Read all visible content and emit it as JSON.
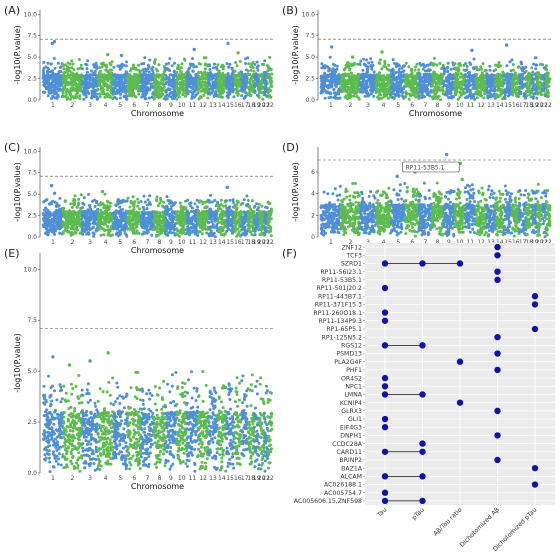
{
  "colors": {
    "odd_chr": "#4f8fd6",
    "even_chr": "#5dbb4f",
    "threshold": "#555555",
    "dot": "#1212a8",
    "grid": "#e3e3e3",
    "panel_bg": "#ebebeb"
  },
  "chart_data": [
    {
      "panel": "(A)",
      "type": "scatter",
      "xlabel": "Chromosome",
      "ylabel": "-log10(P.value)",
      "ylim": [
        0,
        10.5
      ],
      "yticks": [
        "0.0",
        "2.5",
        "5.0",
        "7.5",
        "10.0"
      ],
      "threshold": 7.1,
      "categories": [
        "1",
        "2",
        "3",
        "4",
        "5",
        "6",
        "7",
        "8",
        "9",
        "10",
        "11",
        "12",
        "13",
        "14",
        "15",
        "16",
        "17",
        "18",
        "19",
        "20",
        "21",
        "22"
      ],
      "top_points": [
        {
          "chr": "1",
          "y": 6.8
        },
        {
          "chr": "1",
          "y": 6.6
        },
        {
          "chr": "4",
          "y": 5.3
        },
        {
          "chr": "5",
          "y": 5.2
        },
        {
          "chr": "11",
          "y": 5.9
        },
        {
          "chr": "15",
          "y": 6.6
        },
        {
          "chr": "16",
          "y": 5.5
        }
      ]
    },
    {
      "panel": "(B)",
      "type": "scatter",
      "xlabel": "Chromosome",
      "ylabel": "-log10(P.value)",
      "ylim": [
        0,
        10.5
      ],
      "yticks": [
        "0.0",
        "2.5",
        "5.0",
        "7.5",
        "10.0"
      ],
      "threshold": 7.1,
      "categories": [
        "1",
        "2",
        "3",
        "4",
        "5",
        "6",
        "7",
        "8",
        "9",
        "10",
        "11",
        "12",
        "13",
        "14",
        "15",
        "16",
        "17",
        "18",
        "19",
        "20",
        "21",
        "22"
      ],
      "top_points": [
        {
          "chr": "1",
          "y": 6.2
        },
        {
          "chr": "2",
          "y": 5.0
        },
        {
          "chr": "4",
          "y": 5.6
        },
        {
          "chr": "11",
          "y": 5.8
        },
        {
          "chr": "15",
          "y": 6.4
        }
      ]
    },
    {
      "panel": "(C)",
      "type": "scatter",
      "xlabel": "Chromosome",
      "ylabel": "-log10(P.value)",
      "ylim": [
        0,
        10.5
      ],
      "yticks": [
        "0.0",
        "2.5",
        "5.0",
        "7.5",
        "10.0"
      ],
      "threshold": 7.1,
      "categories": [
        "1",
        "2",
        "3",
        "4",
        "5",
        "6",
        "7",
        "8",
        "9",
        "10",
        "11",
        "12",
        "13",
        "14",
        "15",
        "16",
        "17",
        "18",
        "19",
        "20",
        "21",
        "22"
      ],
      "top_points": [
        {
          "chr": "1",
          "y": 6.0
        },
        {
          "chr": "1",
          "y": 5.1
        },
        {
          "chr": "4",
          "y": 5.3
        },
        {
          "chr": "15",
          "y": 5.8
        }
      ]
    },
    {
      "panel": "(D)",
      "type": "scatter",
      "xlabel": "Chromosome",
      "ylabel": "-log10(P.value)",
      "ylim": [
        0,
        8.3
      ],
      "yticks": [
        "0",
        "2",
        "4",
        "6"
      ],
      "threshold": 7.1,
      "categories": [
        "1",
        "2",
        "3",
        "4",
        "5",
        "6",
        "7",
        "8",
        "9",
        "10",
        "11",
        "12",
        "13",
        "14",
        "15",
        "16",
        "17",
        "18",
        "19",
        "20",
        "21",
        "22"
      ],
      "annotation": "RP11-53B5.1",
      "top_points": [
        {
          "chr": "9",
          "y": 7.6
        },
        {
          "chr": "10",
          "y": 6.8
        },
        {
          "chr": "6",
          "y": 6.0
        },
        {
          "chr": "5",
          "y": 5.6
        },
        {
          "chr": "10",
          "y": 5.3
        }
      ]
    },
    {
      "panel": "(E)",
      "type": "scatter",
      "xlabel": "Chromosome",
      "ylabel": "-log10(P.value)",
      "ylim": [
        0,
        10.8
      ],
      "yticks": [
        "0.0",
        "2.5",
        "5.0",
        "7.5",
        "10.0"
      ],
      "threshold": 7.1,
      "categories": [
        "1",
        "2",
        "3",
        "4",
        "5",
        "6",
        "7",
        "8",
        "9",
        "10",
        "11",
        "12",
        "13",
        "14",
        "15",
        "16",
        "17",
        "18",
        "19",
        "20",
        "21",
        "22"
      ],
      "top_points": [
        {
          "chr": "1",
          "y": 5.7
        },
        {
          "chr": "3",
          "y": 5.5
        },
        {
          "chr": "4",
          "y": 5.9
        },
        {
          "chr": "2",
          "y": 5.3
        }
      ]
    },
    {
      "panel": "(F)",
      "type": "dot-matrix",
      "x_categories": [
        "Tau",
        "pTau",
        "Aβ/Tau ratio",
        "Dichotomized Aβ",
        "Dichotomized pTau"
      ],
      "genes": [
        "ZNF12",
        "TCF3",
        "SZRD1",
        "RP11-56I23.1",
        "RP11-53B5.1",
        "RP11-501J20.2",
        "RP11-443B7.1",
        "RP11-371F15.3",
        "RP11-260O18.1",
        "RP11-134P9.3",
        "RP1-65P5.1",
        "RP1-125N5.2",
        "RGS12",
        "PSMD13",
        "PLA2G4F",
        "PHF1",
        "OR4S2",
        "NPC1",
        "LMNA",
        "KCNIP4",
        "GLRX3",
        "GLI1",
        "EIF4G3",
        "DNPH1",
        "CCDC28A",
        "CARD11",
        "BRINP2",
        "BAZ1A",
        "ALCAM",
        "AC026188.1",
        "AC005754.7",
        "AC005606.15,ZNF598"
      ],
      "hits": [
        {
          "gene": "ZNF12",
          "cols": [
            3
          ]
        },
        {
          "gene": "TCF3",
          "cols": [
            3
          ]
        },
        {
          "gene": "SZRD1",
          "cols": [
            0,
            1,
            2
          ]
        },
        {
          "gene": "RP11-56I23.1",
          "cols": [
            3
          ]
        },
        {
          "gene": "RP11-53B5.1",
          "cols": [
            3
          ]
        },
        {
          "gene": "RP11-501J20.2",
          "cols": [
            0
          ]
        },
        {
          "gene": "RP11-443B7.1",
          "cols": [
            4
          ]
        },
        {
          "gene": "RP11-371F15.3",
          "cols": [
            4
          ]
        },
        {
          "gene": "RP11-260O18.1",
          "cols": [
            0
          ]
        },
        {
          "gene": "RP11-134P9.3",
          "cols": [
            0
          ]
        },
        {
          "gene": "RP1-65P5.1",
          "cols": [
            4
          ]
        },
        {
          "gene": "RP1-125N5.2",
          "cols": [
            3
          ]
        },
        {
          "gene": "RGS12",
          "cols": [
            0,
            1
          ]
        },
        {
          "gene": "PSMD13",
          "cols": [
            3
          ]
        },
        {
          "gene": "PLA2G4F",
          "cols": [
            2
          ]
        },
        {
          "gene": "PHF1",
          "cols": [
            3
          ]
        },
        {
          "gene": "OR4S2",
          "cols": [
            0
          ]
        },
        {
          "gene": "NPC1",
          "cols": [
            0
          ]
        },
        {
          "gene": "LMNA",
          "cols": [
            0,
            1
          ]
        },
        {
          "gene": "KCNIP4",
          "cols": [
            2
          ]
        },
        {
          "gene": "GLRX3",
          "cols": [
            3
          ]
        },
        {
          "gene": "GLI1",
          "cols": [
            0
          ]
        },
        {
          "gene": "EIF4G3",
          "cols": [
            0
          ]
        },
        {
          "gene": "DNPH1",
          "cols": [
            3
          ]
        },
        {
          "gene": "CCDC28A",
          "cols": [
            1
          ]
        },
        {
          "gene": "CARD11",
          "cols": [
            0,
            1
          ]
        },
        {
          "gene": "BRINP2",
          "cols": [
            3
          ]
        },
        {
          "gene": "BAZ1A",
          "cols": [
            4
          ]
        },
        {
          "gene": "ALCAM",
          "cols": [
            0,
            1
          ]
        },
        {
          "gene": "AC026188.1",
          "cols": [
            4
          ]
        },
        {
          "gene": "AC005754.7",
          "cols": [
            0
          ]
        },
        {
          "gene": "AC005606.15,ZNF598",
          "cols": [
            0,
            1
          ]
        }
      ]
    }
  ]
}
